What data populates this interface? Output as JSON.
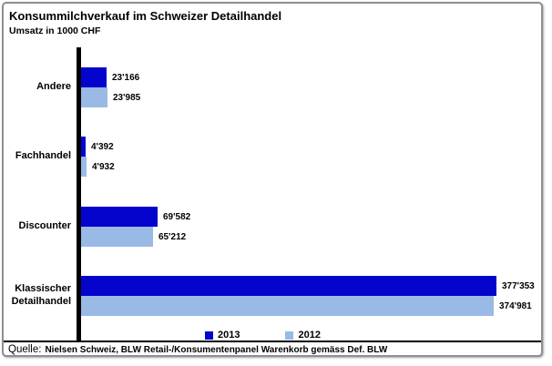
{
  "title": "Konsummilchverkauf im Schweizer Detailhandel",
  "subtitle": "Umsatz in 1000 CHF",
  "source": {
    "label": "Quelle:",
    "text": "Nielsen Schweiz, BLW Retail-/Konsumentenpanel Warenkorb gemäss Def. BLW"
  },
  "legend": [
    {
      "label": "2013",
      "color": "#0404cd"
    },
    {
      "label": "2012",
      "color": "#99bae4"
    }
  ],
  "colors": {
    "series_2013": "#0404cd",
    "series_2012": "#99bae4",
    "axis": "#000000",
    "frame_border": "#8f8f8f"
  },
  "chart_data": {
    "type": "bar",
    "orientation": "horizontal",
    "title": "Konsummilchverkauf im Schweizer Detailhandel",
    "subtitle": "Umsatz in 1000 CHF",
    "xlabel": "",
    "ylabel": "",
    "xlim": [
      0,
      377353
    ],
    "grid": false,
    "legend_position": "bottom",
    "categories": [
      "Andere",
      "Fachhandel",
      "Discounter",
      "Klassischer Detailhandel"
    ],
    "series": [
      {
        "name": "2013",
        "color": "#0404cd",
        "values": [
          23166,
          4392,
          69582,
          377353
        ],
        "value_labels": [
          "23'166",
          "4'392",
          "69'582",
          "377'353"
        ]
      },
      {
        "name": "2012",
        "color": "#99bae4",
        "values": [
          23985,
          4932,
          65212,
          374981
        ],
        "value_labels": [
          "23'985",
          "4'932",
          "65'212",
          "374'981"
        ]
      }
    ]
  }
}
